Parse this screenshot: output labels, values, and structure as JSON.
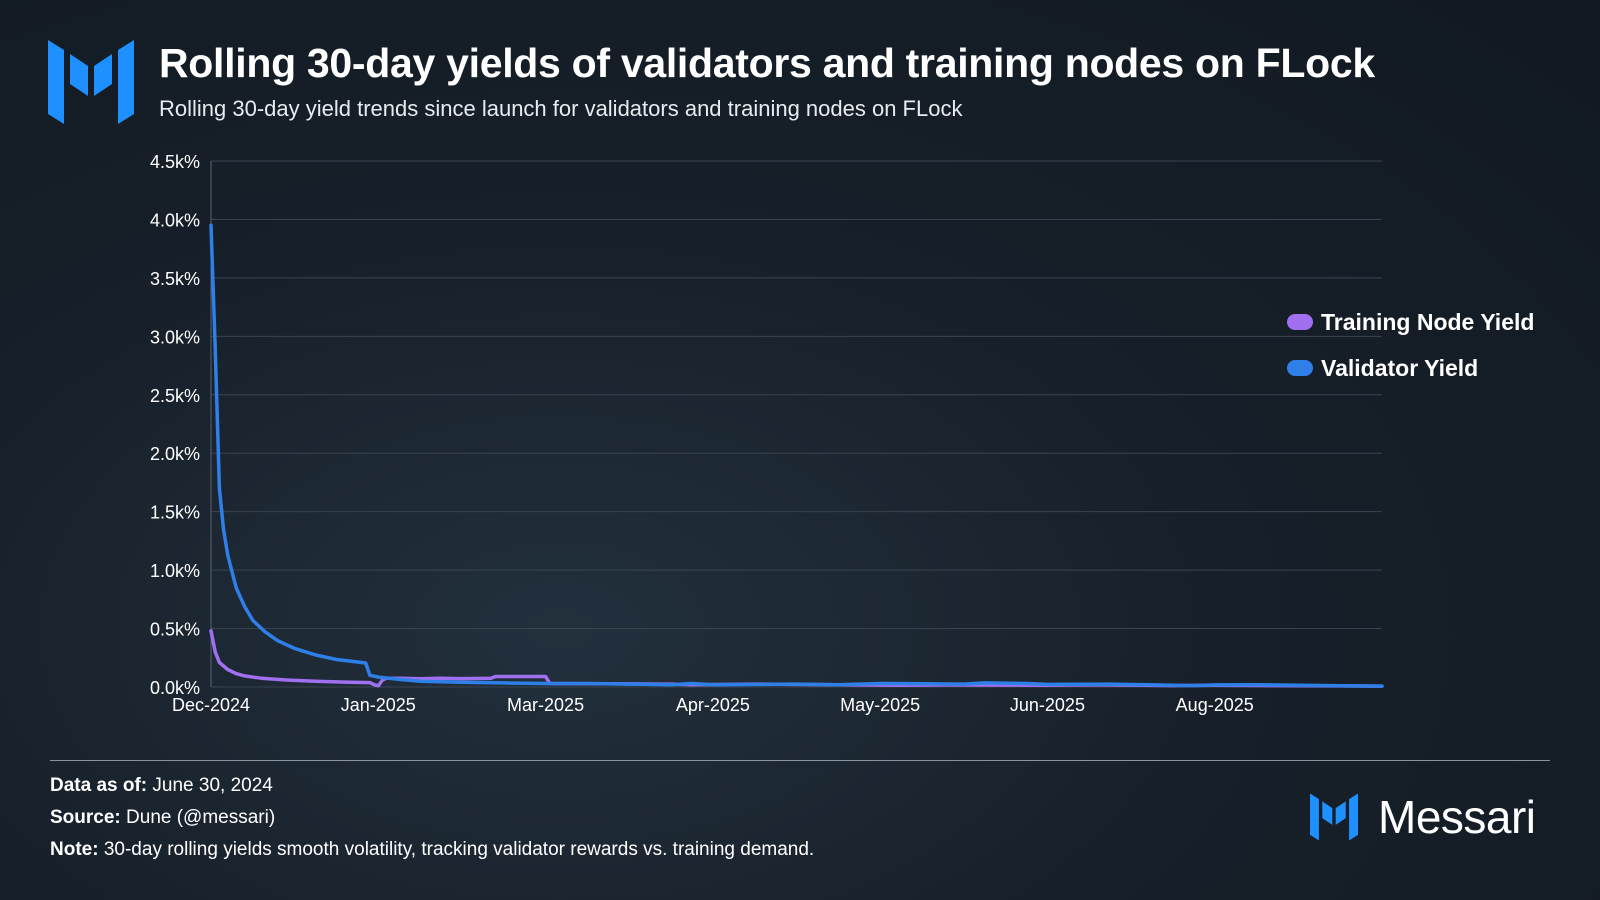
{
  "header": {
    "title": "Rolling 30-day yields of validators and training nodes on FLock",
    "subtitle": "Rolling 30-day yield trends since launch for validators and training nodes on FLock"
  },
  "colors": {
    "training": "#a070f0",
    "validator": "#2f7fe8",
    "logo": "#1e90ff",
    "grid": "#3a4450",
    "text": "#ffffff"
  },
  "chart_data": {
    "type": "line",
    "title": "Rolling 30-day yields of validators and training nodes on FLock",
    "xlabel": "",
    "ylabel": "",
    "ylim": [
      0,
      4500
    ],
    "grid": true,
    "legend_position": "right",
    "y_ticks": [
      0,
      500,
      1000,
      1500,
      2000,
      2500,
      3000,
      3500,
      4000,
      4500
    ],
    "y_tick_labels": [
      "0.0k%",
      "0.5k%",
      "1.0k%",
      "1.5k%",
      "2.0k%",
      "2.5k%",
      "3.0k%",
      "3.5k%",
      "4.0k%",
      "4.5k%"
    ],
    "x_domain": [
      0,
      280
    ],
    "x_ticks": [
      {
        "day": 0,
        "label": "Dec-2024"
      },
      {
        "day": 40,
        "label": "Jan-2025"
      },
      {
        "day": 80,
        "label": "Mar-2025"
      },
      {
        "day": 120,
        "label": "Apr-2025"
      },
      {
        "day": 160,
        "label": "May-2025"
      },
      {
        "day": 200,
        "label": "Jun-2025"
      },
      {
        "day": 240,
        "label": "Aug-2025"
      }
    ],
    "series": [
      {
        "name": "Training Node Yield",
        "color": "#a070f0",
        "points": [
          [
            0,
            480
          ],
          [
            1,
            300
          ],
          [
            2,
            210
          ],
          [
            4,
            150
          ],
          [
            6,
            115
          ],
          [
            8,
            95
          ],
          [
            12,
            75
          ],
          [
            18,
            60
          ],
          [
            25,
            50
          ],
          [
            32,
            42
          ],
          [
            38,
            38
          ],
          [
            39,
            20
          ],
          [
            40,
            10
          ],
          [
            41,
            60
          ],
          [
            42,
            75
          ],
          [
            45,
            75
          ],
          [
            50,
            70
          ],
          [
            55,
            75
          ],
          [
            60,
            72
          ],
          [
            67,
            75
          ],
          [
            68,
            90
          ],
          [
            80,
            90
          ],
          [
            81,
            30
          ],
          [
            110,
            25
          ],
          [
            115,
            20
          ],
          [
            130,
            25
          ],
          [
            150,
            20
          ],
          [
            165,
            15
          ],
          [
            176,
            18
          ],
          [
            200,
            15
          ],
          [
            210,
            20
          ],
          [
            230,
            12
          ],
          [
            240,
            15
          ],
          [
            260,
            10
          ],
          [
            280,
            8
          ]
        ]
      },
      {
        "name": "Validator Yield",
        "color": "#2f7fe8",
        "points": [
          [
            0,
            3950
          ],
          [
            1,
            2900
          ],
          [
            2,
            1700
          ],
          [
            3,
            1350
          ],
          [
            4,
            1130
          ],
          [
            6,
            850
          ],
          [
            8,
            690
          ],
          [
            10,
            570
          ],
          [
            13,
            470
          ],
          [
            16,
            395
          ],
          [
            20,
            330
          ],
          [
            25,
            275
          ],
          [
            30,
            235
          ],
          [
            37,
            205
          ],
          [
            38,
            100
          ],
          [
            40,
            85
          ],
          [
            45,
            65
          ],
          [
            50,
            50
          ],
          [
            60,
            40
          ],
          [
            70,
            35
          ],
          [
            80,
            30
          ],
          [
            90,
            30
          ],
          [
            100,
            25
          ],
          [
            110,
            20
          ],
          [
            115,
            30
          ],
          [
            120,
            20
          ],
          [
            140,
            25
          ],
          [
            150,
            20
          ],
          [
            160,
            30
          ],
          [
            170,
            28
          ],
          [
            180,
            25
          ],
          [
            185,
            35
          ],
          [
            195,
            30
          ],
          [
            200,
            22
          ],
          [
            215,
            25
          ],
          [
            230,
            15
          ],
          [
            235,
            12
          ],
          [
            240,
            18
          ],
          [
            250,
            20
          ],
          [
            260,
            15
          ],
          [
            270,
            10
          ],
          [
            280,
            8
          ]
        ]
      }
    ]
  },
  "legend": {
    "items": [
      {
        "label": "Training Node Yield"
      },
      {
        "label": "Validator Yield"
      }
    ]
  },
  "footer": {
    "data_as_of_label": "Data as of:",
    "data_as_of_value": "June 30, 2024",
    "source_label": "Source:",
    "source_value": "Dune (@messari)",
    "note_label": "Note:",
    "note_value": "30-day rolling yields smooth volatility, tracking validator rewards vs. training demand."
  },
  "brand": {
    "name": "Messari"
  }
}
